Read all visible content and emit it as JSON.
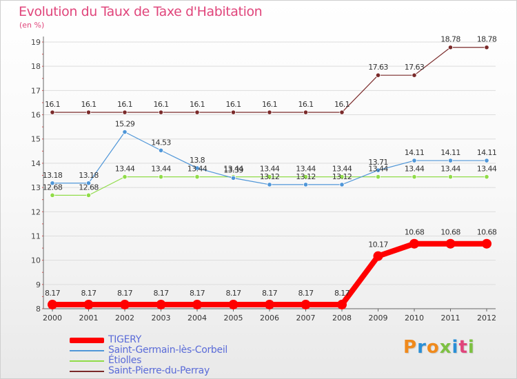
{
  "chart_data": {
    "type": "line",
    "title": "Evolution du Taux de Taxe d'Habitation",
    "subtitle": "(en %)",
    "x": [
      2000,
      2001,
      2002,
      2003,
      2004,
      2005,
      2006,
      2007,
      2008,
      2009,
      2010,
      2011,
      2012
    ],
    "ylim": [
      8,
      19
    ],
    "yticks": [
      8,
      9,
      10,
      11,
      12,
      13,
      14,
      15,
      16,
      17,
      18,
      19
    ],
    "grid": true,
    "legend_position": "bottom-left",
    "series": [
      {
        "name": "TIGERY",
        "color": "#ff0000",
        "labels": [
          "8.17",
          "8.17",
          "8.17",
          "8.17",
          "8.17",
          "8.17",
          "8.17",
          "8.17",
          "8.17",
          "10.17",
          "10.68",
          "10.68",
          "10.68"
        ],
        "values": [
          8.17,
          8.17,
          8.17,
          8.17,
          8.17,
          8.17,
          8.17,
          8.17,
          8.17,
          10.17,
          10.68,
          10.68,
          10.68
        ]
      },
      {
        "name": "Saint-Germain-lès-Corbeil",
        "color": "#4f96d8",
        "labels": [
          "13.18",
          "13.18",
          "15.29",
          "14.53",
          "13.8",
          "13.39",
          "13.12",
          "13.12",
          "13.12",
          "13.71",
          "14.11",
          "14.11",
          "14.11"
        ],
        "values": [
          13.18,
          13.18,
          15.29,
          14.53,
          13.8,
          13.39,
          13.12,
          13.12,
          13.12,
          13.71,
          14.11,
          14.11,
          14.11
        ]
      },
      {
        "name": "Étiolles",
        "color": "#90dc48",
        "labels": [
          "12.68",
          "12.68",
          "13.44",
          "13.44",
          "13.44",
          "13.44",
          "13.44",
          "13.44",
          "13.44",
          "13.44",
          "13.44",
          "13.44",
          "13.44"
        ],
        "values": [
          12.68,
          12.68,
          13.44,
          13.44,
          13.44,
          13.44,
          13.44,
          13.44,
          13.44,
          13.44,
          13.44,
          13.44,
          13.44
        ]
      },
      {
        "name": "Saint-Pierre-du-Perray",
        "color": "#7a2a2a",
        "labels": [
          "16.1",
          "16.1",
          "16.1",
          "16.1",
          "16.1",
          "16.1",
          "16.1",
          "16.1",
          "16.1",
          "17.63",
          "17.63",
          "18.78",
          "18.78"
        ],
        "values": [
          16.1,
          16.1,
          16.1,
          16.1,
          16.1,
          16.1,
          16.1,
          16.1,
          16.1,
          17.63,
          17.63,
          18.78,
          18.78
        ]
      }
    ]
  },
  "brand": {
    "letters": [
      "P",
      "r",
      "o",
      "x",
      "i",
      "t",
      "i"
    ]
  }
}
